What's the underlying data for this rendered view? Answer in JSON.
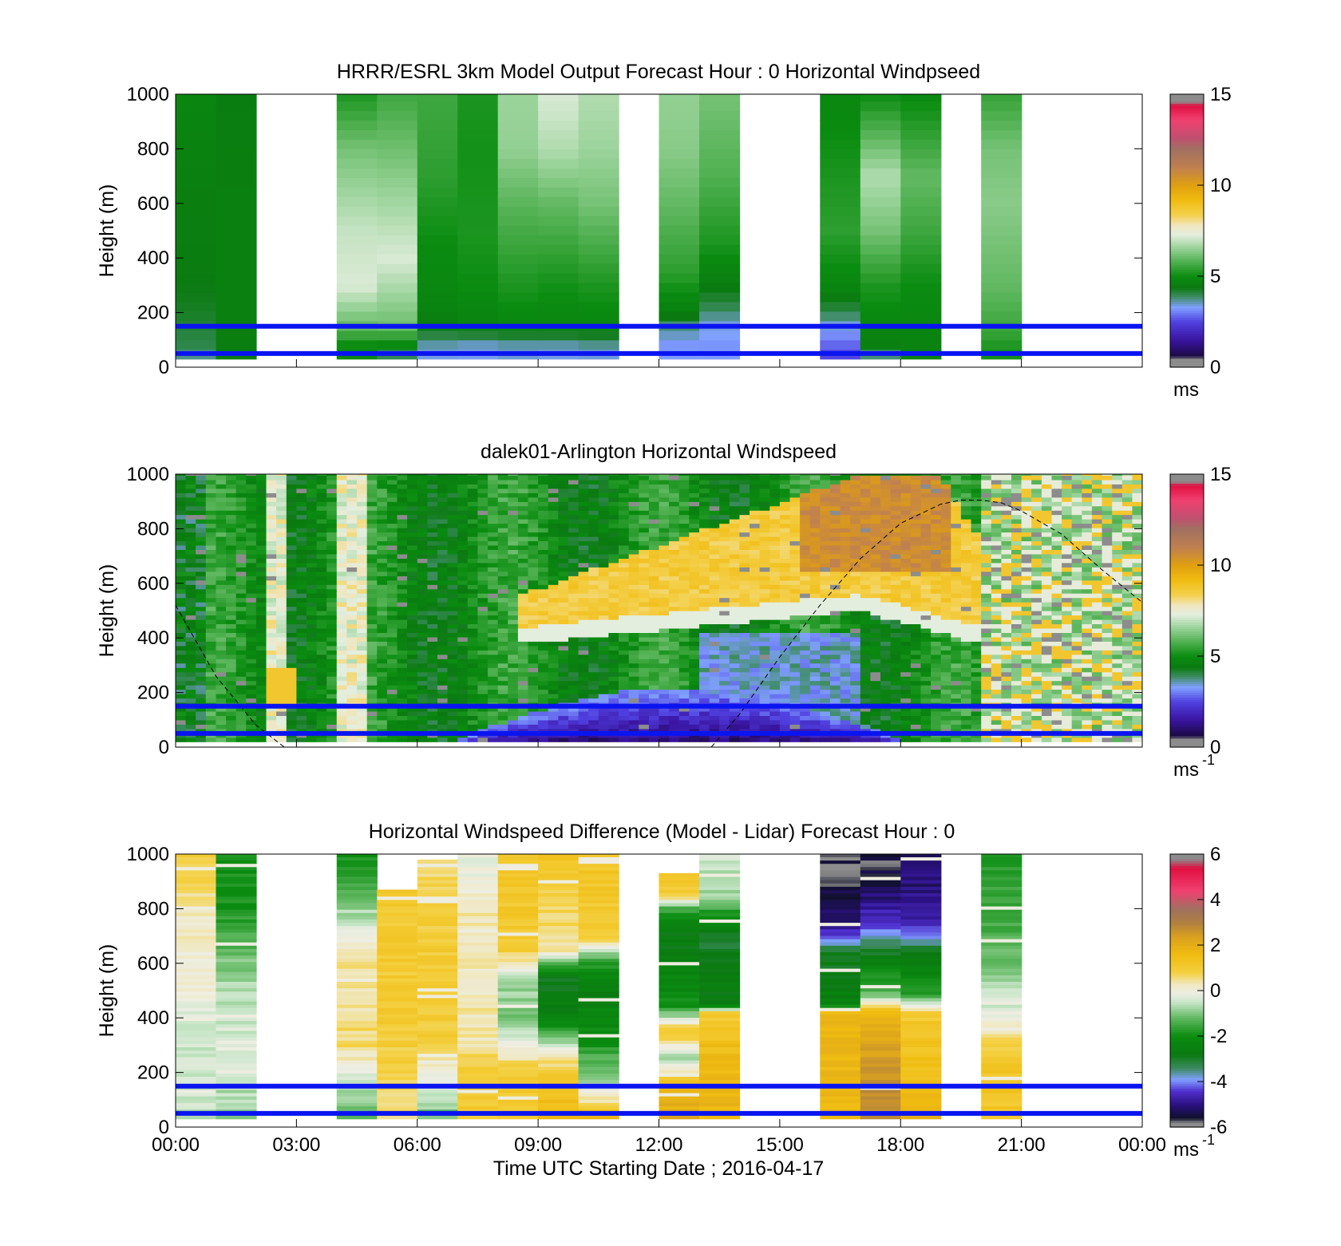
{
  "figure": {
    "xlabel": "Time UTC  Starting Date ; 2016-04-17",
    "x_ticks": [
      "00:00",
      "03:00",
      "06:00",
      "09:00",
      "12:00",
      "15:00",
      "18:00",
      "21:00",
      "00:00"
    ]
  },
  "chart_data": [
    {
      "type": "heatmap",
      "title": "HRRR/ESRL 3km Model Output   Forecast Hour : 0 Horizontal Windpseed",
      "ylabel": "Height (m)",
      "y_ticks": [
        "0",
        "200",
        "400",
        "600",
        "800",
        "1000"
      ],
      "xlim_hours": [
        0,
        24
      ],
      "ylim": [
        0,
        1000
      ],
      "colorbar": {
        "ticks": [
          "0",
          "5",
          "10",
          "15"
        ],
        "range": [
          0,
          15
        ],
        "unit_label": "ms",
        "unit_superscript": ""
      },
      "reference_lines_m": [
        50,
        150
      ],
      "reference_line_color": "#0a14f0",
      "columns": [
        {
          "hour": 0,
          "profile": [
            [
              30,
              3.4
            ],
            [
              60,
              4.0
            ],
            [
              120,
              4.1
            ],
            [
              220,
              4.3
            ],
            [
              400,
              4.5
            ],
            [
              700,
              4.6
            ],
            [
              1000,
              4.8
            ]
          ]
        },
        {
          "hour": 1,
          "profile": [
            [
              30,
              4.5
            ],
            [
              200,
              4.6
            ],
            [
              600,
              4.6
            ],
            [
              1000,
              4.5
            ]
          ]
        },
        {
          "hour": 4,
          "profile": [
            [
              30,
              4.8
            ],
            [
              80,
              5.0
            ],
            [
              150,
              6.0
            ],
            [
              300,
              7.2
            ],
            [
              500,
              7.0
            ],
            [
              800,
              6.2
            ],
            [
              1000,
              5.2
            ]
          ]
        },
        {
          "hour": 5,
          "profile": [
            [
              30,
              3.5
            ],
            [
              80,
              4.9
            ],
            [
              150,
              6.1
            ],
            [
              400,
              7.2
            ],
            [
              700,
              6.4
            ],
            [
              1000,
              5.6
            ]
          ]
        },
        {
          "hour": 6,
          "profile": [
            [
              30,
              3.3
            ],
            [
              80,
              3.6
            ],
            [
              150,
              4.5
            ],
            [
              250,
              4.8
            ],
            [
              450,
              5.0
            ],
            [
              700,
              5.4
            ],
            [
              1000,
              5.6
            ]
          ]
        },
        {
          "hour": 7,
          "profile": [
            [
              30,
              3.3
            ],
            [
              80,
              3.5
            ],
            [
              150,
              4.7
            ],
            [
              300,
              5.0
            ],
            [
              500,
              5.2
            ],
            [
              800,
              5.1
            ],
            [
              1000,
              5.2
            ]
          ]
        },
        {
          "hour": 8,
          "profile": [
            [
              30,
              3.4
            ],
            [
              80,
              3.6
            ],
            [
              150,
              4.8
            ],
            [
              300,
              5.2
            ],
            [
              600,
              5.9
            ],
            [
              800,
              6.5
            ],
            [
              1000,
              6.6
            ]
          ]
        },
        {
          "hour": 9,
          "profile": [
            [
              30,
              3.3
            ],
            [
              80,
              3.6
            ],
            [
              150,
              4.8
            ],
            [
              300,
              5.1
            ],
            [
              600,
              6.0
            ],
            [
              800,
              6.8
            ],
            [
              1000,
              7.2
            ]
          ]
        },
        {
          "hour": 10,
          "profile": [
            [
              30,
              3.3
            ],
            [
              80,
              3.7
            ],
            [
              150,
              4.8
            ],
            [
              300,
              5.2
            ],
            [
              600,
              6.2
            ],
            [
              800,
              6.6
            ],
            [
              1000,
              6.8
            ]
          ]
        },
        {
          "hour": 12,
          "profile": [
            [
              30,
              3.3
            ],
            [
              80,
              3.2
            ],
            [
              150,
              3.8
            ],
            [
              200,
              4.6
            ],
            [
              350,
              5.4
            ],
            [
              600,
              6.0
            ],
            [
              800,
              6.4
            ],
            [
              1000,
              6.5
            ]
          ]
        },
        {
          "hour": 13,
          "profile": [
            [
              30,
              3.3
            ],
            [
              80,
              3.2
            ],
            [
              150,
              3.4
            ],
            [
              220,
              4.0
            ],
            [
              320,
              4.6
            ],
            [
              450,
              5.2
            ],
            [
              700,
              5.8
            ],
            [
              1000,
              6.2
            ]
          ]
        },
        {
          "hour": 16,
          "profile": [
            [
              30,
              2.4
            ],
            [
              80,
              2.8
            ],
            [
              150,
              3.4
            ],
            [
              200,
              4.0
            ],
            [
              300,
              4.8
            ],
            [
              500,
              5.4
            ],
            [
              700,
              5.2
            ],
            [
              1000,
              4.8
            ]
          ]
        },
        {
          "hour": 17,
          "profile": [
            [
              30,
              3.4
            ],
            [
              80,
              4.6
            ],
            [
              150,
              4.8
            ],
            [
              300,
              5.2
            ],
            [
              500,
              6.2
            ],
            [
              700,
              6.8
            ],
            [
              1000,
              5.0
            ]
          ]
        },
        {
          "hour": 18,
          "profile": [
            [
              30,
              4.6
            ],
            [
              150,
              4.8
            ],
            [
              300,
              5.0
            ],
            [
              500,
              5.6
            ],
            [
              700,
              6.0
            ],
            [
              1000,
              4.9
            ]
          ]
        },
        {
          "hour": 20,
          "profile": [
            [
              30,
              5.0
            ],
            [
              150,
              5.6
            ],
            [
              300,
              6.0
            ],
            [
              600,
              6.4
            ],
            [
              800,
              6.2
            ],
            [
              1000,
              5.5
            ]
          ]
        }
      ]
    },
    {
      "type": "heatmap",
      "title": "dalek01-Arlington  Horizontal Windspeed",
      "ylabel": "Height (m)",
      "y_ticks": [
        "0",
        "200",
        "400",
        "600",
        "800",
        "1000"
      ],
      "xlim_hours": [
        0,
        24
      ],
      "ylim": [
        0,
        1000
      ],
      "colorbar": {
        "ticks": [
          "0",
          "5",
          "10",
          "15"
        ],
        "range": [
          0,
          15
        ],
        "unit_label": "ms",
        "unit_superscript": "-1"
      },
      "reference_lines_m": [
        50,
        150
      ],
      "reference_line_color": "#0a14f0",
      "dashed_line_m": [
        [
          0,
          520
        ],
        [
          1,
          260
        ],
        [
          2,
          80
        ],
        [
          2.7,
          0
        ],
        [
          null,
          null
        ],
        [
          13.3,
          0
        ],
        [
          14,
          120
        ],
        [
          15,
          330
        ],
        [
          16,
          520
        ],
        [
          17,
          690
        ],
        [
          18,
          820
        ],
        [
          19,
          890
        ],
        [
          19.5,
          905
        ],
        [
          20,
          905
        ],
        [
          20.5,
          895
        ],
        [
          21,
          865
        ],
        [
          22,
          780
        ],
        [
          23,
          650
        ],
        [
          24,
          530
        ]
      ],
      "lidar_field_notes": "Low-level jet layer (~8-10 m/s) rising from ~450 m at 09:00 to ~900 m at 17:00; weak winds (<3 m/s) below ~200 m from 07:00 to 17:00; green 4-6 m/s elsewhere."
    },
    {
      "type": "heatmap",
      "title": "Horizontal Windspeed Difference (Model - Lidar) Forecast Hour : 0",
      "ylabel": "Height (m)",
      "y_ticks": [
        "0",
        "200",
        "400",
        "600",
        "800",
        "1000"
      ],
      "xlim_hours": [
        0,
        24
      ],
      "ylim": [
        0,
        1000
      ],
      "colorbar": {
        "ticks": [
          "-6",
          "-4",
          "-2",
          "0",
          "2",
          "4",
          "6"
        ],
        "range": [
          -6,
          6
        ],
        "unit_label": "ms",
        "unit_superscript": "-1"
      },
      "reference_lines_m": [
        50,
        150
      ],
      "reference_line_color": "#0a14f0",
      "columns": [
        {
          "hour": 0,
          "top": 1000,
          "profile": [
            [
              30,
              -0.5
            ],
            [
              300,
              -0.5
            ],
            [
              500,
              0.0
            ],
            [
              800,
              0.3
            ],
            [
              1000,
              1.0
            ]
          ]
        },
        {
          "hour": 1,
          "top": 1000,
          "profile": [
            [
              30,
              -0.8
            ],
            [
              300,
              -0.3
            ],
            [
              500,
              -0.6
            ],
            [
              800,
              -1.8
            ],
            [
              1000,
              -2.0
            ]
          ]
        },
        {
          "hour": 4,
          "top": 1000,
          "profile": [
            [
              30,
              -1.4
            ],
            [
              150,
              -0.6
            ],
            [
              300,
              0.6
            ],
            [
              600,
              0.4
            ],
            [
              800,
              -0.8
            ],
            [
              1000,
              -2.0
            ]
          ]
        },
        {
          "hour": 5,
          "top": 870,
          "profile": [
            [
              30,
              0.4
            ],
            [
              150,
              0.8
            ],
            [
              400,
              1.0
            ],
            [
              700,
              1.0
            ],
            [
              870,
              1.0
            ]
          ]
        },
        {
          "hour": 6,
          "top": 980,
          "profile": [
            [
              30,
              -1.2
            ],
            [
              150,
              -0.3
            ],
            [
              300,
              0.9
            ],
            [
              600,
              1.0
            ],
            [
              800,
              0.9
            ],
            [
              980,
              0.5
            ]
          ]
        },
        {
          "hour": 7,
          "top": 1000,
          "profile": [
            [
              30,
              1.0
            ],
            [
              200,
              1.0
            ],
            [
              300,
              0.4
            ],
            [
              500,
              0.3
            ],
            [
              800,
              0.3
            ],
            [
              1000,
              -0.2
            ]
          ]
        },
        {
          "hour": 8,
          "top": 1000,
          "profile": [
            [
              30,
              1.0
            ],
            [
              200,
              1.0
            ],
            [
              400,
              -1.2
            ],
            [
              550,
              -0.6
            ],
            [
              650,
              1.0
            ],
            [
              1000,
              1.2
            ]
          ]
        },
        {
          "hour": 9,
          "top": 1000,
          "profile": [
            [
              30,
              1.6
            ],
            [
              150,
              1.4
            ],
            [
              250,
              0.5
            ],
            [
              400,
              -2.5
            ],
            [
              550,
              -3.0
            ],
            [
              650,
              0.4
            ],
            [
              1000,
              1.2
            ]
          ]
        },
        {
          "hour": 10,
          "top": 1000,
          "profile": [
            [
              30,
              1.8
            ],
            [
              150,
              -0.5
            ],
            [
              300,
              -1.8
            ],
            [
              500,
              -2.6
            ],
            [
              600,
              -1.8
            ],
            [
              700,
              1.0
            ],
            [
              1000,
              1.2
            ]
          ]
        },
        {
          "hour": 12,
          "top": 930,
          "profile": [
            [
              30,
              2.2
            ],
            [
              150,
              1.6
            ],
            [
              250,
              -0.8
            ],
            [
              350,
              1.2
            ],
            [
              450,
              -2.0
            ],
            [
              700,
              -2.8
            ],
            [
              800,
              -1.6
            ],
            [
              850,
              1.0
            ],
            [
              930,
              1.2
            ]
          ]
        },
        {
          "hour": 13,
          "top": 1000,
          "profile": [
            [
              30,
              1.8
            ],
            [
              300,
              1.5
            ],
            [
              420,
              1.0
            ],
            [
              450,
              -2.6
            ],
            [
              700,
              -3.0
            ],
            [
              850,
              -0.8
            ],
            [
              1000,
              -0.4
            ]
          ]
        },
        {
          "hour": 16,
          "top": 1000,
          "profile": [
            [
              30,
              1.6
            ],
            [
              300,
              1.8
            ],
            [
              420,
              1.6
            ],
            [
              450,
              -2.5
            ],
            [
              650,
              -3.0
            ],
            [
              700,
              -4.4
            ],
            [
              800,
              -5.4
            ],
            [
              1000,
              -5.8
            ]
          ]
        },
        {
          "hour": 17,
          "top": 1000,
          "profile": [
            [
              30,
              2.8
            ],
            [
              200,
              2.6
            ],
            [
              420,
              1.8
            ],
            [
              480,
              -1.0
            ],
            [
              650,
              -3.0
            ],
            [
              750,
              -4.4
            ],
            [
              900,
              -5.4
            ],
            [
              1000,
              -5.6
            ]
          ]
        },
        {
          "hour": 18,
          "top": 1000,
          "profile": [
            [
              30,
              1.8
            ],
            [
              300,
              1.3
            ],
            [
              420,
              1.0
            ],
            [
              480,
              -1.6
            ],
            [
              650,
              -3.0
            ],
            [
              720,
              -4.4
            ],
            [
              850,
              -5.0
            ],
            [
              1000,
              -5.2
            ]
          ]
        },
        {
          "hour": 20,
          "top": 1000,
          "profile": [
            [
              30,
              1.2
            ],
            [
              250,
              1.2
            ],
            [
              380,
              0.0
            ],
            [
              450,
              -0.4
            ],
            [
              700,
              -1.4
            ],
            [
              1000,
              -1.8
            ]
          ]
        }
      ]
    }
  ]
}
